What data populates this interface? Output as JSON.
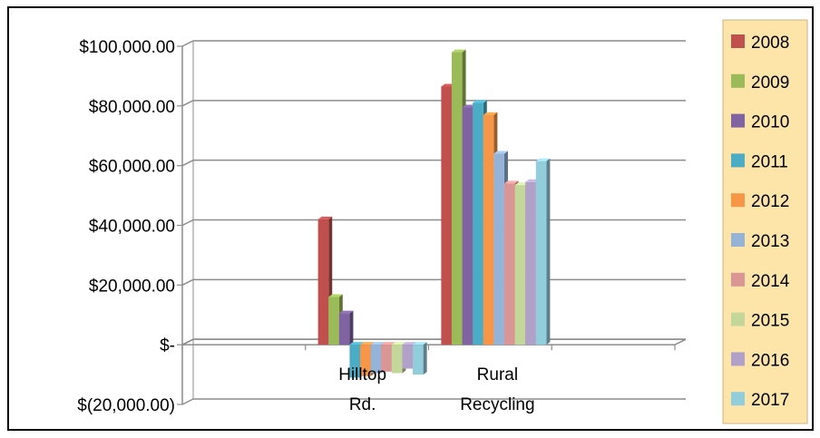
{
  "chart_data": {
    "type": "bar",
    "title": "",
    "xlabel": "",
    "ylabel": "",
    "ylim": [
      -20000,
      100000
    ],
    "yticks": [
      {
        "value": 100000,
        "label": "$100,000.00"
      },
      {
        "value": 80000,
        "label": "$80,000.00"
      },
      {
        "value": 60000,
        "label": "$60,000.00"
      },
      {
        "value": 40000,
        "label": "$40,000.00"
      },
      {
        "value": 20000,
        "label": "$20,000.00"
      },
      {
        "value": 0,
        "label": "$-"
      },
      {
        "value": -20000,
        "label": "$(20,000.00)"
      }
    ],
    "categories": [
      {
        "lines": [
          "Hilltop",
          "Rd."
        ]
      },
      {
        "lines": [
          "Rural",
          "Recycling"
        ]
      }
    ],
    "grid": true,
    "legend_position": "right",
    "series": [
      {
        "name": "2008",
        "color": "#C0504D",
        "values": [
          42000,
          86500
        ]
      },
      {
        "name": "2009",
        "color": "#9BBB59",
        "values": [
          16000,
          98000
        ]
      },
      {
        "name": "2010",
        "color": "#8064A2",
        "values": [
          10500,
          79500
        ]
      },
      {
        "name": "2011",
        "color": "#4BACC6",
        "values": [
          -11000,
          81000
        ]
      },
      {
        "name": "2012",
        "color": "#F79646",
        "values": [
          -10500,
          77000
        ]
      },
      {
        "name": "2013",
        "color": "#95B3D7",
        "values": [
          -9500,
          64000
        ]
      },
      {
        "name": "2014",
        "color": "#DA9694",
        "values": [
          -9000,
          54000
        ]
      },
      {
        "name": "2015",
        "color": "#C4D79B",
        "values": [
          -9500,
          53500
        ]
      },
      {
        "name": "2016",
        "color": "#B1A0C7",
        "values": [
          -8000,
          54500
        ]
      },
      {
        "name": "2017",
        "color": "#92CDDC",
        "values": [
          -10000,
          61500
        ]
      }
    ]
  }
}
